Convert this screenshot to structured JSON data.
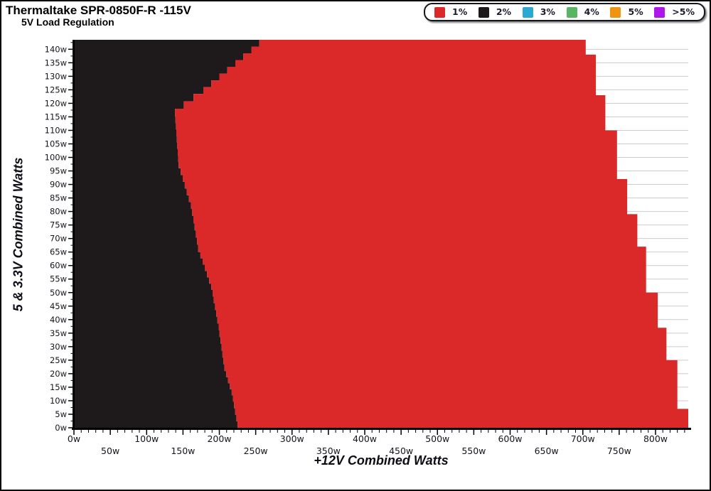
{
  "window": {
    "title": "Thermaltake SPR-0850F-R -115V",
    "subtitle": "5V Load Regulation"
  },
  "legend": {
    "items": [
      {
        "label": "1%",
        "color": "#da2928"
      },
      {
        "label": "2%",
        "color": "#1e1a1b"
      },
      {
        "label": "3%",
        "color": "#2aa9d2"
      },
      {
        "label": "4%",
        "color": "#57b564"
      },
      {
        "label": "5%",
        "color": "#ee9413"
      },
      {
        "label": ">5%",
        "color": "#ad17ea"
      }
    ]
  },
  "chart_data": {
    "type": "heatmap",
    "title": "Thermaltake SPR-0850F-R -115V",
    "subtitle": "5V Load Regulation",
    "xlabel": "+12V Combined Watts",
    "ylabel": "5 & 3.3V Combined Watts",
    "xlim": [
      0,
      845
    ],
    "ylim": [
      0,
      143.5
    ],
    "grid": {
      "horizontal_every_watts": 5,
      "color": "#cbcbcb",
      "visible_only_outside_data": true
    },
    "legend_position": "top-right",
    "x_tick_labels": [
      "0w",
      "50w",
      "100w",
      "150w",
      "200w",
      "250w",
      "300w",
      "350w",
      "400w",
      "450w",
      "500w",
      "550w",
      "600w",
      "650w",
      "700w",
      "750w",
      "800w"
    ],
    "x_tick_values": [
      0,
      50,
      100,
      150,
      200,
      250,
      300,
      350,
      400,
      450,
      500,
      550,
      600,
      650,
      700,
      750,
      800
    ],
    "x_minor_step": 10,
    "y_tick_labels": [
      "0w",
      "5w",
      "10w",
      "15w",
      "20w",
      "25w",
      "30w",
      "35w",
      "40w",
      "45w",
      "50w",
      "55w",
      "60w",
      "65w",
      "70w",
      "75w",
      "80w",
      "85w",
      "90w",
      "95w",
      "100w",
      "105w",
      "110w",
      "115w",
      "120w",
      "125w",
      "130w",
      "135w",
      "140w"
    ],
    "y_tick_values": [
      0,
      5,
      10,
      15,
      20,
      25,
      30,
      35,
      40,
      45,
      50,
      55,
      60,
      65,
      70,
      75,
      80,
      85,
      90,
      95,
      100,
      105,
      110,
      115,
      120,
      125,
      130,
      135,
      140
    ],
    "y_minor_step": 2.5,
    "zones_present": [
      "1%",
      "2%"
    ],
    "regions": [
      {
        "legend": "2%",
        "color": "#1e1a1b",
        "area": "left of boundary_2pct_1pct, from x=0"
      },
      {
        "legend": "1%",
        "color": "#da2928",
        "area": "between boundary_2pct_1pct and max_power_edge_steps"
      }
    ],
    "boundary_2pct_1pct": [
      [
        225,
        0
      ],
      [
        217,
        12
      ],
      [
        207,
        21
      ],
      [
        199,
        36
      ],
      [
        189,
        51
      ],
      [
        171,
        65
      ],
      [
        161,
        81
      ],
      [
        144,
        96
      ],
      [
        139,
        115
      ],
      [
        151,
        118
      ],
      [
        178,
        123.5
      ],
      [
        266,
        143.5
      ]
    ],
    "max_power_edge_steps": [
      {
        "x": 704,
        "y_from": 143.5,
        "y_to": 138
      },
      {
        "x": 718,
        "y_from": 138,
        "y_to": 123
      },
      {
        "x": 731,
        "y_from": 123,
        "y_to": 110
      },
      {
        "x": 747,
        "y_from": 110,
        "y_to": 92
      },
      {
        "x": 761,
        "y_from": 92,
        "y_to": 79
      },
      {
        "x": 775,
        "y_from": 79,
        "y_to": 67
      },
      {
        "x": 787,
        "y_from": 67,
        "y_to": 50
      },
      {
        "x": 803,
        "y_from": 50,
        "y_to": 37
      },
      {
        "x": 815,
        "y_from": 37,
        "y_to": 25
      },
      {
        "x": 830,
        "y_from": 25,
        "y_to": 7
      },
      {
        "x": 845,
        "y_from": 7,
        "y_to": 0
      }
    ],
    "stair_step_watts": 2.5
  }
}
